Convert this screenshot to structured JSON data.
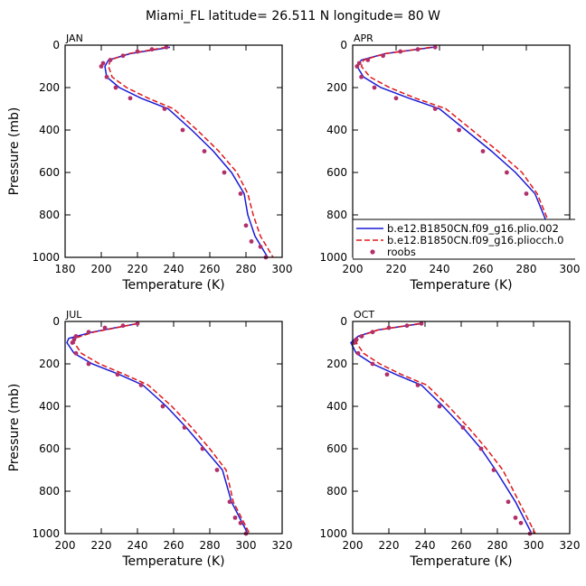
{
  "title": "Miami_FL  latitude= 26.511 N longitude= 80 W",
  "colors": {
    "model1": "#1a1ad6",
    "model2": "#e01818",
    "obs": "#b0306a",
    "frame": "#000000"
  },
  "legend": {
    "placement": "lower-right of APR panel",
    "entries": [
      {
        "label": "b.e12.B1850CN.f09_g16.plio.002",
        "style": "solid-line",
        "color": "#1a1ad6"
      },
      {
        "label": "b.e12.B1850CN.f09_g16.pliocch.0",
        "style": "dashed-line",
        "color": "#e01818"
      },
      {
        "label": "roobs",
        "style": "dot",
        "color": "#b0306a"
      }
    ]
  },
  "chart_data": [
    {
      "type": "line",
      "panel": "JAN",
      "title": "JAN",
      "xlabel": "Temperature (K)",
      "ylabel": "Pressure (mb)",
      "xlim": [
        180,
        300
      ],
      "xticks": [
        180,
        200,
        220,
        240,
        260,
        280,
        300
      ],
      "ylim": [
        1000,
        0
      ],
      "yticks": [
        0,
        200,
        400,
        600,
        800,
        1000
      ],
      "series": [
        {
          "name": "b.e12.B1850CN.f09_g16.plio.002",
          "style": "solid",
          "color": "#1a1ad6",
          "x": [
            238,
            216,
            204,
            202,
            203,
            210,
            222,
            237,
            250,
            262,
            272,
            279,
            281,
            285,
            292
          ],
          "y": [
            10,
            40,
            70,
            100,
            150,
            200,
            250,
            300,
            400,
            500,
            600,
            700,
            800,
            900,
            1000
          ]
        },
        {
          "name": "b.e12.B1850CN.f09_g16.pliocch.0",
          "style": "dashed",
          "color": "#e01818",
          "x": [
            236,
            215,
            205,
            204,
            206,
            214,
            226,
            240,
            253,
            265,
            275,
            281,
            284,
            288,
            295
          ],
          "y": [
            10,
            40,
            70,
            100,
            150,
            200,
            250,
            300,
            400,
            500,
            600,
            700,
            800,
            900,
            1000
          ]
        },
        {
          "name": "roobs",
          "style": "markers",
          "color": "#b0306a",
          "x": [
            236,
            228,
            220,
            212,
            205,
            201,
            200,
            203,
            208,
            216,
            235,
            245,
            257,
            268,
            277,
            280,
            283,
            288,
            291
          ],
          "y": [
            10,
            20,
            30,
            50,
            70,
            85,
            100,
            150,
            200,
            250,
            300,
            400,
            500,
            600,
            700,
            850,
            925,
            950,
            1000
          ]
        }
      ]
    },
    {
      "type": "line",
      "panel": "APR",
      "title": "APR",
      "xlabel": "Temperature (K)",
      "ylabel": "",
      "xlim": [
        200,
        300
      ],
      "xticks": [
        200,
        220,
        240,
        260,
        280,
        300
      ],
      "ylim": [
        1000,
        0
      ],
      "yticks": [
        0,
        200,
        400,
        600,
        800,
        1000
      ],
      "series": [
        {
          "name": "b.e12.B1850CN.f09_g16.plio.002",
          "style": "solid",
          "color": "#1a1ad6",
          "x": [
            237,
            215,
            204,
            202,
            205,
            213,
            226,
            240,
            252,
            264,
            275,
            284,
            290,
            296
          ],
          "y": [
            10,
            40,
            70,
            100,
            150,
            200,
            250,
            300,
            400,
            500,
            600,
            700,
            850,
            1000
          ]
        },
        {
          "name": "b.e12.B1850CN.f09_g16.pliocch.0",
          "style": "dashed",
          "color": "#e01818",
          "x": [
            236,
            215,
            205,
            204,
            208,
            217,
            229,
            243,
            255,
            267,
            278,
            285,
            291,
            297
          ],
          "y": [
            10,
            40,
            70,
            100,
            150,
            200,
            250,
            300,
            400,
            500,
            600,
            700,
            850,
            1000
          ]
        },
        {
          "name": "roobs",
          "style": "markers",
          "color": "#b0306a",
          "x": [
            238,
            230,
            222,
            214,
            207,
            203,
            202,
            204,
            210,
            220,
            238,
            249,
            260,
            271,
            280,
            286,
            290,
            293,
            296
          ],
          "y": [
            10,
            20,
            30,
            50,
            70,
            85,
            100,
            150,
            200,
            250,
            300,
            400,
            500,
            600,
            700,
            850,
            925,
            950,
            1000
          ]
        }
      ]
    },
    {
      "type": "line",
      "panel": "JUL",
      "title": "JUL",
      "xlabel": "Temperature (K)",
      "ylabel": "Pressure (mb)",
      "xlim": [
        200,
        320
      ],
      "xticks": [
        200,
        220,
        240,
        260,
        280,
        300,
        320
      ],
      "ylim": [
        1000,
        0
      ],
      "yticks": [
        0,
        200,
        400,
        600,
        800,
        1000
      ],
      "series": [
        {
          "name": "b.e12.B1850CN.f09_g16.plio.002",
          "style": "solid",
          "color": "#1a1ad6",
          "x": [
            240,
            215,
            202,
            201,
            205,
            215,
            230,
            243,
            256,
            267,
            277,
            287,
            292,
            301
          ],
          "y": [
            10,
            50,
            80,
            100,
            150,
            200,
            250,
            300,
            400,
            500,
            600,
            700,
            850,
            1000
          ]
        },
        {
          "name": "b.e12.B1850CN.f09_g16.pliocch.0",
          "style": "dashed",
          "color": "#e01818",
          "x": [
            240,
            216,
            205,
            205,
            209,
            219,
            233,
            246,
            259,
            270,
            280,
            289,
            293,
            302
          ],
          "y": [
            10,
            50,
            80,
            100,
            150,
            200,
            250,
            300,
            400,
            500,
            600,
            700,
            850,
            1000
          ]
        },
        {
          "name": "roobs",
          "style": "markers",
          "color": "#b0306a",
          "x": [
            240,
            232,
            222,
            213,
            206,
            205,
            204,
            206,
            213,
            229,
            242,
            254,
            266,
            276,
            284,
            291,
            294,
            297,
            300
          ],
          "y": [
            10,
            20,
            30,
            50,
            70,
            85,
            100,
            150,
            200,
            250,
            300,
            400,
            500,
            600,
            700,
            850,
            925,
            950,
            1000
          ]
        }
      ]
    },
    {
      "type": "line",
      "panel": "OCT",
      "title": "OCT",
      "xlabel": "Temperature (K)",
      "ylabel": "",
      "xlim": [
        200,
        320
      ],
      "xticks": [
        200,
        220,
        240,
        260,
        280,
        300,
        320
      ],
      "ylim": [
        1000,
        0
      ],
      "yticks": [
        0,
        200,
        400,
        600,
        800,
        1000
      ],
      "series": [
        {
          "name": "b.e12.B1850CN.f09_g16.plio.002",
          "style": "solid",
          "color": "#1a1ad6",
          "x": [
            238,
            214,
            203,
            199,
            202,
            211,
            224,
            238,
            250,
            261,
            271,
            279,
            290,
            299
          ],
          "y": [
            10,
            40,
            70,
            100,
            150,
            200,
            250,
            300,
            400,
            500,
            600,
            700,
            850,
            1000
          ]
        },
        {
          "name": "b.e12.B1850CN.f09_g16.pliocch.0",
          "style": "dashed",
          "color": "#e01818",
          "x": [
            237,
            214,
            204,
            202,
            206,
            215,
            227,
            241,
            253,
            264,
            274,
            283,
            292,
            301
          ],
          "y": [
            10,
            40,
            70,
            100,
            150,
            200,
            250,
            300,
            400,
            500,
            600,
            700,
            850,
            1000
          ]
        },
        {
          "name": "roobs",
          "style": "markers",
          "color": "#b0306a",
          "x": [
            238,
            230,
            220,
            211,
            205,
            202,
            201,
            203,
            211,
            219,
            236,
            248,
            261,
            271,
            278,
            286,
            290,
            293,
            298
          ],
          "y": [
            10,
            20,
            30,
            50,
            70,
            85,
            100,
            150,
            200,
            250,
            300,
            400,
            500,
            600,
            700,
            850,
            925,
            950,
            1000
          ]
        }
      ]
    }
  ]
}
